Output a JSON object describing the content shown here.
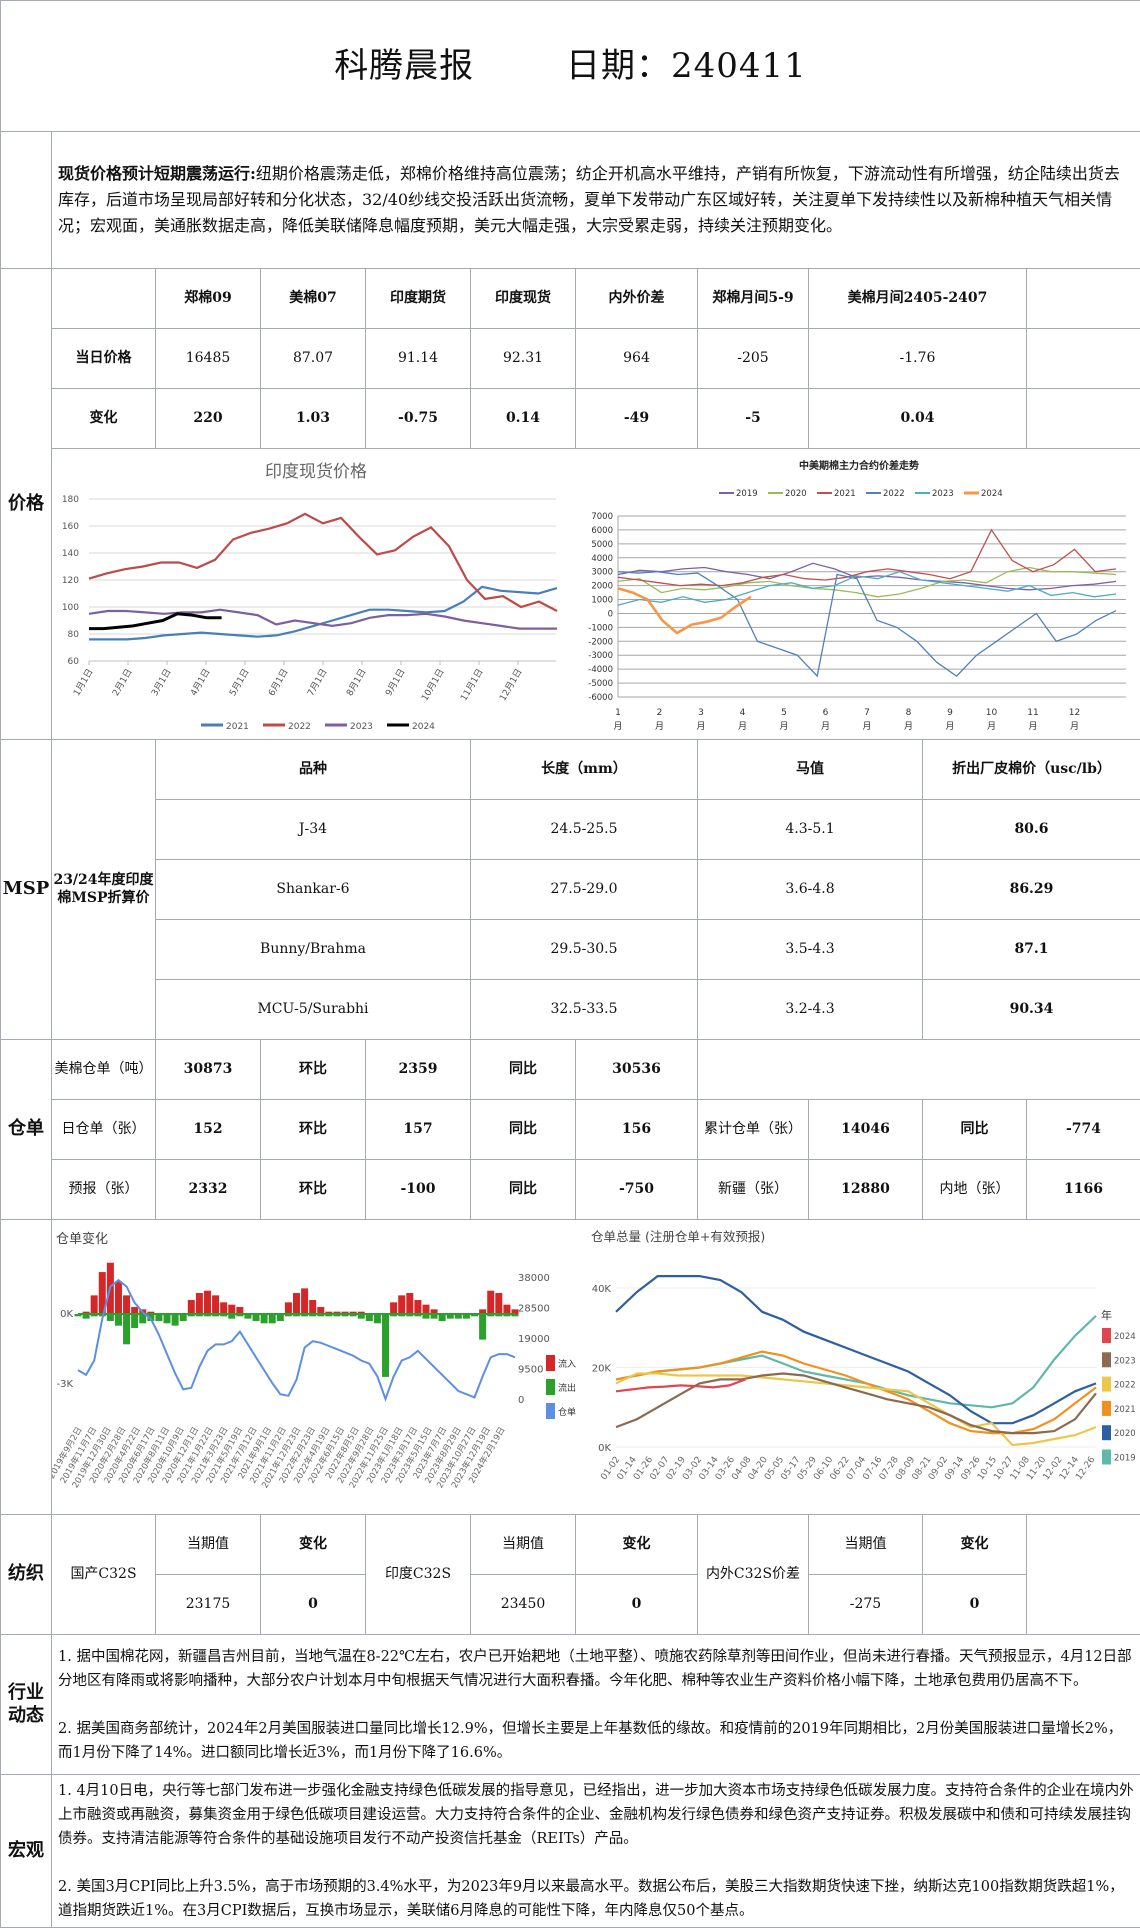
{
  "header": {
    "title": "科腾晨报",
    "date_label": "日期：240411"
  },
  "summary": {
    "lead": "现货价格预计短期震荡运行:",
    "text": "纽期价格震荡走低，郑棉价格维持高位震荡；纺企开机高水平维持，产销有所恢复，下游流动性有所增强，纺企陆续出货去库存，后道市场呈现局部好转和分化状态，32/40纱线交投活跃出货流畅，夏单下发带动广东区域好转，关注夏单下发持续性以及新棉种植天气相关情况；宏观面，美通胀数据走高，降低美联储降息幅度预期，美元大幅走强，大宗受累走弱，持续关注预期变化。"
  },
  "price": {
    "section_label": "价格",
    "headers": [
      "郑棉09",
      "美棉07",
      "印度期货",
      "印度现货",
      "内外价差",
      "郑棉月间5-9",
      "美棉月间2405-2407"
    ],
    "rows": [
      {
        "label": "当日价格",
        "values": [
          "16485",
          "87.07",
          "91.14",
          "92.31",
          "964",
          "-205",
          "-1.76"
        ]
      },
      {
        "label": "变化",
        "values": [
          "220",
          "1.03",
          "-0.75",
          "0.14",
          "-49",
          "-5",
          "0.04"
        ]
      }
    ]
  },
  "msp": {
    "section_label": "MSP",
    "row_label": "23/24年度印度棉MSP折算价",
    "headers": [
      "品种",
      "长度（mm）",
      "马值",
      "折出厂皮棉价（usc/lb）"
    ],
    "rows": [
      [
        "J-34",
        "24.5-25.5",
        "4.3-5.1",
        "80.6"
      ],
      [
        "Shankar-6",
        "27.5-29.0",
        "3.6-4.8",
        "86.29"
      ],
      [
        "Bunny/Brahma",
        "29.5-30.5",
        "3.5-4.3",
        "87.1"
      ],
      [
        "MCU-5/Surabhi",
        "32.5-33.5",
        "3.2-4.3",
        "90.34"
      ]
    ]
  },
  "warehouse": {
    "section_label": "仓单",
    "rows": [
      [
        "美棉仓单（吨）",
        "30873",
        "环比",
        "2359",
        "同比",
        "30536"
      ],
      [
        "日仓单（张）",
        "152",
        "环比",
        "157",
        "同比",
        "156",
        "累计仓单（张）",
        "14046",
        "同比",
        "-774"
      ],
      [
        "预报（张）",
        "2332",
        "环比",
        "-100",
        "同比",
        "-750",
        "新疆（张）",
        "12880",
        "内地（张）",
        "1166"
      ]
    ]
  },
  "textile": {
    "section_label": "纺织",
    "groups": [
      {
        "name": "国产C32S",
        "h1": "当期值",
        "h2": "变化",
        "v1": "23175",
        "v2": "0"
      },
      {
        "name": "印度C32S",
        "h1": "当期值",
        "h2": "变化",
        "v1": "23450",
        "v2": "0"
      },
      {
        "name": "内外C32S价差",
        "h1": "当期值",
        "h2": "变化",
        "v1": "-275",
        "v2": "0"
      }
    ]
  },
  "industry": {
    "section_label": "行业动态",
    "items": [
      "1. 据中国棉花网，新疆昌吉州目前，当地气温在8-22℃左右，农户已开始耙地（土地平整）、喷施农药除草剂等田间作业，但尚未进行春播。天气预报显示，4月12日部分地区有降雨或将影响播种，大部分农户计划本月中旬根据天气情况进行大面积春播。今年化肥、棉种等农业生产资料价格小幅下降，土地承包费用仍居高不下。",
      "2. 据美国商务部统计，2024年2月美国服装进口量同比增长12.9%，但增长主要是上年基数低的缘故。和疫情前的2019年同期相比，2月份美国服装进口量增长2%，而1月份下降了14%。进口额同比增长近3%，而1月份下降了16.6%。"
    ]
  },
  "macro": {
    "section_label": "宏观",
    "items": [
      "1. 4月10日电，央行等七部门发布进一步强化金融支持绿色低碳发展的指导意见，已经指出，进一步加大资本市场支持绿色低碳发展力度。支持符合条件的企业在境内外上市融资或再融资，募集资金用于绿色低碳项目建设运营。大力支持符合条件的企业、金融机构发行绿色债券和绿色资产支持证券。积极发展碳中和债和可持续发展挂钩债券。支持清洁能源等符合条件的基础设施项目发行不动产投资信托基金（REITs）产品。",
      "2. 美国3月CPI同比上升3.5%，高于市场预期的3.4%水平，为2023年9月以来最高水平。数据公布后，美股三大指数期货快速下挫，纳斯达克100指数期货跌超1%，道指期货跌近1%。在3月CPI数据后，互换市场显示，美联储6月降息的可能性下降，年内降息仅50个基点。"
    ]
  },
  "chart_data": [
    {
      "id": "india_spot",
      "type": "line",
      "title": "印度现货价格",
      "ylim": [
        60,
        180
      ],
      "yticks": [
        60,
        80,
        100,
        120,
        140,
        160,
        180
      ],
      "xticks": [
        "1月1日",
        "2月1日",
        "3月1日",
        "4月1日",
        "5月1日",
        "6月1日",
        "7月1日",
        "8月1日",
        "9月1日",
        "10月1日",
        "11月1日",
        "12月1日"
      ],
      "legend": "bottom",
      "grid": true,
      "series": [
        {
          "name": "2021",
          "color": "#4a7ebb",
          "values": [
            76,
            76,
            76,
            77,
            79,
            80,
            81,
            80,
            79,
            78,
            79,
            82,
            86,
            90,
            94,
            98,
            98,
            97,
            96,
            97,
            104,
            115,
            112,
            111,
            110,
            114
          ]
        },
        {
          "name": "2022",
          "color": "#be4b48",
          "values": [
            121,
            125,
            128,
            130,
            133,
            133,
            129,
            135,
            150,
            155,
            158,
            162,
            169,
            162,
            166,
            152,
            139,
            142,
            152,
            159,
            145,
            120,
            106,
            108,
            100,
            104,
            97
          ]
        },
        {
          "name": "2023",
          "color": "#7d5fa0",
          "values": [
            95,
            97,
            97,
            96,
            95,
            96,
            96,
            98,
            96,
            94,
            87,
            90,
            88,
            86,
            88,
            92,
            94,
            94,
            95,
            93,
            90,
            88,
            86,
            84,
            84,
            84
          ]
        },
        {
          "name": "2024",
          "color": "#000000",
          "end_month": 4.4,
          "values": [
            84,
            84,
            85,
            86,
            88,
            90,
            95,
            94,
            92,
            92
          ]
        }
      ]
    },
    {
      "id": "cn_us_spread",
      "type": "line",
      "title": "中美期棉主力合约价差走势",
      "ylim": [
        -6000,
        7000
      ],
      "yticks": [
        -6000,
        -5000,
        -4000,
        -3000,
        -2000,
        -1000,
        0,
        1000,
        2000,
        3000,
        4000,
        5000,
        6000,
        7000
      ],
      "xticks": [
        "1",
        "2",
        "3",
        "4",
        "5",
        "6",
        "7",
        "8",
        "9",
        "10",
        "11",
        "12"
      ],
      "xtick_suffix": "月",
      "legend": "top",
      "grid": true,
      "series": [
        {
          "name": "2019",
          "color": "#7f5fa8",
          "values": [
            2800,
            3100,
            3000,
            3200,
            3300,
            3000,
            2800,
            2500,
            3000,
            3600,
            3200,
            2600,
            2700,
            2600,
            2400,
            2300,
            2200,
            2000,
            1800,
            1700,
            1800,
            2000,
            2100,
            2300
          ]
        },
        {
          "name": "2020",
          "color": "#9bbb59",
          "values": [
            2300,
            2500,
            1500,
            1800,
            1700,
            1900,
            2200,
            2300,
            2000,
            1800,
            1700,
            1500,
            1200,
            1400,
            1800,
            2300,
            2400,
            2200,
            3000,
            3300,
            3000,
            3000,
            2900,
            2800
          ]
        },
        {
          "name": "2021",
          "color": "#c0504d",
          "values": [
            2600,
            2400,
            2200,
            2000,
            2100,
            2000,
            2200,
            2600,
            2800,
            2500,
            2400,
            2600,
            3000,
            3200,
            3000,
            2800,
            2500,
            3000,
            6000,
            3800,
            3000,
            3500,
            4600,
            3000,
            3200
          ]
        },
        {
          "name": "2022",
          "color": "#4f81bd",
          "values": [
            3000,
            2900,
            3000,
            2800,
            2900,
            2000,
            1000,
            -2000,
            -2500,
            -3000,
            -4500,
            2800,
            2500,
            -500,
            -1000,
            -2000,
            -3500,
            -4500,
            -3000,
            -2000,
            -1000,
            0,
            -2000,
            -1500,
            -500,
            200
          ]
        },
        {
          "name": "2023",
          "color": "#4bacc6",
          "values": [
            600,
            1000,
            800,
            1200,
            800,
            1000,
            1500,
            2000,
            2200,
            1800,
            2000,
            2700,
            2500,
            3000,
            2400,
            2200,
            2000,
            1800,
            1600,
            2000,
            1300,
            1500,
            1200,
            1400
          ]
        },
        {
          "name": "2024",
          "color": "#f79646",
          "end_month": 4.2,
          "values": [
            1800,
            1500,
            1000,
            -500,
            -1400,
            -800,
            -600,
            -300,
            500,
            1200
          ]
        }
      ]
    },
    {
      "id": "warehouse_change",
      "type": "bar+line",
      "title": "仓单变化",
      "left_ylim_k": [
        -3,
        2.3
      ],
      "left_ticks": [
        "0K",
        "-3K"
      ],
      "right_ylim": [
        0,
        38000
      ],
      "right_ticks": [
        "38000",
        "28500",
        "19000",
        "9500",
        "0"
      ],
      "xticks": [
        "2019年9月2日",
        "2019年11月7日",
        "2019年12月30日",
        "2020年2月28日",
        "2020年4月22日",
        "2020年6月17日",
        "2020年8月11日",
        "2020年10月9日",
        "2020年12月1日",
        "2021年1月22日",
        "2021年3月23日",
        "2021年5月19日",
        "2021年7月12日",
        "2021年9月1日",
        "2021年11月2日",
        "2021年12月23日",
        "2022年2月23日",
        "2022年4月19日",
        "2022年6月15日",
        "2022年8月5日",
        "2022年9月28日",
        "2022年11月25日",
        "2023年1月18日",
        "2023年3月17日",
        "2023年5月15日",
        "2023年7月7日",
        "2023年8月29日",
        "2023年10月27日",
        "2023年12月19日",
        "2024年2月19日"
      ],
      "legend": [
        {
          "name": "流入",
          "color": "#d62728"
        },
        {
          "name": "流出",
          "color": "#2ca02c"
        },
        {
          "name": "仓单",
          "color": "#5b8fe6"
        }
      ],
      "inflow_k": [
        0,
        0.1,
        0.8,
        1.8,
        2.2,
        1.4,
        0.8,
        0.3,
        0.2,
        0.1,
        0,
        0,
        0,
        0,
        0.6,
        0.9,
        1.0,
        0.8,
        0.5,
        0.4,
        0.3,
        0,
        0,
        0,
        0,
        0,
        0.5,
        0.9,
        1.1,
        0.6,
        0.3,
        0.1,
        0.1,
        0.1,
        0.1,
        0.1,
        0,
        0,
        0,
        0.5,
        0.8,
        0.9,
        0.6,
        0.4,
        0.2,
        0,
        0,
        0,
        0,
        0,
        0.2,
        1.0,
        0.9,
        0.4,
        0.2
      ],
      "outflow_k": [
        -0.1,
        -0.2,
        -0.1,
        -0.1,
        -0.3,
        -0.5,
        -1.3,
        -0.6,
        -0.4,
        -0.3,
        -0.3,
        -0.4,
        -0.5,
        -0.3,
        -0.1,
        -0.1,
        -0.1,
        -0.1,
        -0.1,
        -0.2,
        -0.1,
        -0.2,
        -0.3,
        -0.4,
        -0.4,
        -0.3,
        -0.1,
        -0.1,
        -0.1,
        -0.1,
        -0.1,
        -0.1,
        -0.1,
        -0.1,
        -0.1,
        -0.2,
        -0.3,
        -0.4,
        -2.7,
        -0.1,
        -0.1,
        -0.1,
        -0.1,
        -0.2,
        -0.2,
        -0.3,
        -0.2,
        -0.2,
        -0.2,
        -0.1,
        -1.1,
        -0.1,
        -0.1,
        -0.1,
        -0.1
      ],
      "receipts": [
        9000,
        7500,
        12000,
        25000,
        35000,
        37000,
        35000,
        30000,
        27000,
        25000,
        20000,
        14000,
        8000,
        3000,
        3500,
        10000,
        15000,
        17000,
        17000,
        18000,
        21000,
        17000,
        13000,
        9000,
        5000,
        1500,
        1000,
        6000,
        16000,
        18000,
        17500,
        16500,
        15500,
        14500,
        13500,
        12000,
        11000,
        7000,
        0,
        7000,
        12000,
        13000,
        15000,
        12500,
        10000,
        7500,
        5000,
        2500,
        1500,
        500,
        7000,
        13000,
        14000,
        14000,
        13000
      ]
    },
    {
      "id": "warehouse_total",
      "type": "line",
      "title": "仓单总量 (注册仓单+有效预报)",
      "ylim_k": [
        0,
        44
      ],
      "yticks": [
        "0K",
        "20K",
        "40K"
      ],
      "xticks": [
        "01-02",
        "01-14",
        "01-26",
        "02-07",
        "02-19",
        "03-02",
        "03-14",
        "03-26",
        "04-08",
        "04-20",
        "05-05",
        "05-17",
        "05-29",
        "06-10",
        "06-22",
        "07-04",
        "07-16",
        "07-28",
        "08-09",
        "08-21",
        "09-02",
        "09-14",
        "09-26",
        "10-15",
        "10-27",
        "11-08",
        "11-20",
        "12-02",
        "12-14",
        "12-26"
      ],
      "legend_title": "年",
      "series": [
        {
          "name": "2024",
          "color": "#e0464e",
          "end_fraction": 0.27,
          "values": [
            14,
            14.5,
            15,
            15.2,
            15.5,
            15.3,
            15,
            15.5,
            17
          ]
        },
        {
          "name": "2023",
          "color": "#8c6a4f",
          "values": [
            5,
            7,
            10,
            13,
            16,
            17,
            17,
            18,
            18.5,
            18,
            16.5,
            15,
            13.5,
            12,
            11,
            10,
            8,
            5.5,
            4,
            3.5,
            3.5,
            4,
            7,
            13.5
          ]
        },
        {
          "name": "2022",
          "color": "#ebc84a",
          "values": [
            16,
            18.5,
            18.5,
            18,
            18,
            18,
            18,
            17.5,
            17,
            16.5,
            16,
            15.5,
            15,
            14.5,
            14,
            11,
            8,
            5,
            6,
            0.5,
            1,
            2,
            3,
            5
          ]
        },
        {
          "name": "2021",
          "color": "#f0901e",
          "values": [
            17,
            18,
            19,
            19.5,
            20,
            21,
            22.5,
            24,
            23,
            21,
            19.5,
            18,
            16,
            14,
            12,
            9,
            6,
            4,
            3.5,
            3.5,
            4.5,
            7,
            11,
            15
          ]
        },
        {
          "name": "2020",
          "color": "#2e5fa0",
          "values": [
            34,
            39,
            43,
            43,
            43,
            42,
            39,
            34,
            32,
            29,
            27,
            25,
            23,
            21,
            19,
            16,
            13,
            9,
            6,
            6,
            8,
            11,
            14,
            16
          ]
        },
        {
          "name": "2019",
          "color": "#5fb8a8",
          "values": [
            17,
            18,
            19,
            19.5,
            20,
            21,
            22,
            23,
            21,
            19,
            18,
            17,
            16,
            14.5,
            13,
            12,
            11,
            10.5,
            10,
            11,
            15,
            22,
            28,
            33
          ]
        }
      ]
    }
  ]
}
